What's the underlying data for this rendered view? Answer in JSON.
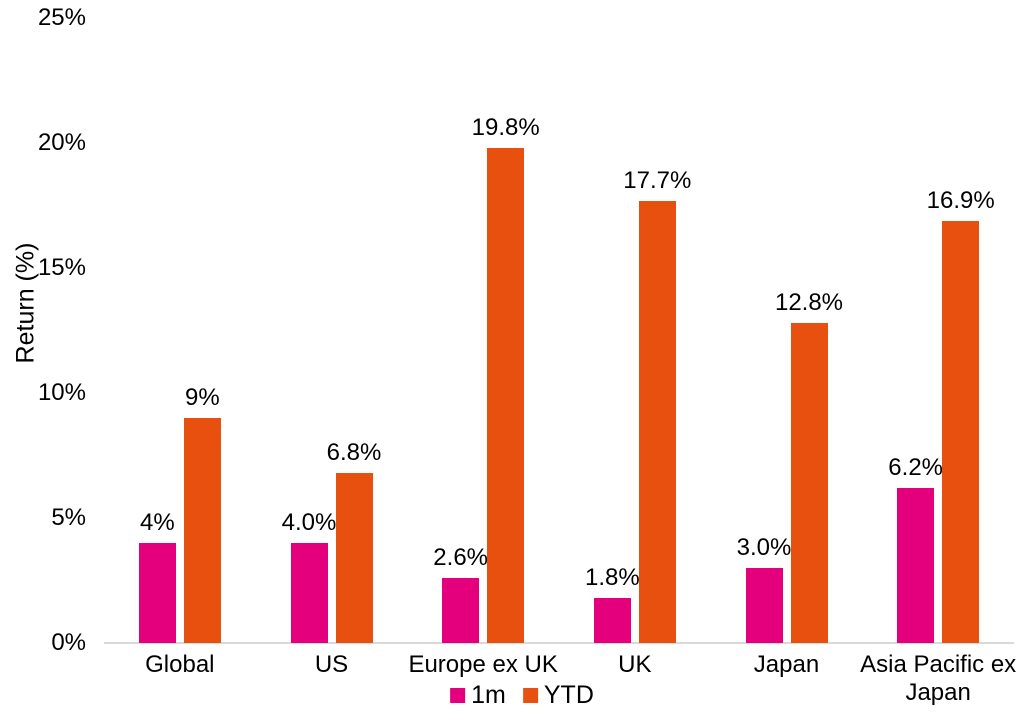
{
  "chart_data": {
    "type": "bar",
    "title": "",
    "xlabel": "",
    "ylabel": "Return (%)",
    "ylim": [
      0,
      25
    ],
    "grid": false,
    "legend_position": "bottom-center",
    "categories": [
      "Global",
      "US",
      "Europe ex UK",
      "UK",
      "Japan",
      "Asia Pacific ex Japan"
    ],
    "yticks": [
      {
        "label": "0%",
        "value": 0
      },
      {
        "label": "5%",
        "value": 5
      },
      {
        "label": "10%",
        "value": 10
      },
      {
        "label": "15%",
        "value": 15
      },
      {
        "label": "20%",
        "value": 20
      },
      {
        "label": "25%",
        "value": 25
      }
    ],
    "series": [
      {
        "name": "1m",
        "color": "#e4007c",
        "values": [
          4.0,
          4.0,
          2.6,
          1.8,
          3.0,
          6.2
        ],
        "labels": [
          "4%",
          "4.0%",
          "2.6%",
          "1.8%",
          "3.0%",
          "6.2%"
        ]
      },
      {
        "name": "YTD",
        "color": "#e85010",
        "values": [
          9.0,
          6.8,
          19.8,
          17.7,
          12.8,
          16.9
        ],
        "labels": [
          "9%",
          "6.8%",
          "19.8%",
          "17.7%",
          "12.8%",
          "16.9%"
        ]
      }
    ]
  }
}
